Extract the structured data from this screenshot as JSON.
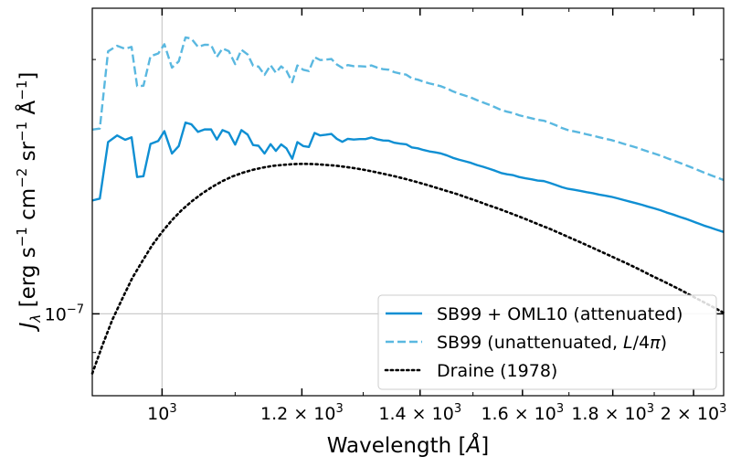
{
  "chart_data": {
    "type": "line",
    "xscale": "log",
    "yscale": "log",
    "xlim": [
      913,
      2080
    ],
    "ylim": [
      8e-08,
      2.3e-07
    ],
    "xlabel_prefix": "Wavelength [",
    "xlabel_unit": "Å",
    "xlabel_suffix": "]",
    "ylabel_parts": [
      "J",
      "λ",
      " [erg s",
      "−1",
      " cm",
      "−2",
      " sr",
      "−1",
      " Å",
      "−1",
      "]"
    ],
    "xticks": [
      {
        "value": 1000,
        "mantissa": "",
        "exp": "3"
      },
      {
        "value": 1200,
        "mantissa": "1.2 × 10",
        "exp": "3"
      },
      {
        "value": 1400,
        "mantissa": "1.4 × 10",
        "exp": "3"
      },
      {
        "value": 1600,
        "mantissa": "1.6 × 10",
        "exp": "3"
      },
      {
        "value": 1800,
        "mantissa": "1.8 × 10",
        "exp": "3"
      },
      {
        "value": 2000,
        "mantissa": "2 × 10",
        "exp": "3"
      }
    ],
    "yticks": [
      {
        "value": 1e-07,
        "base": "10",
        "exp": "−7"
      }
    ],
    "grid_lines": {
      "x": 1000,
      "y": 1e-07,
      "color": "#cccccc"
    },
    "legend_position": "lower-right",
    "series": [
      {
        "name": "SB99 + OML10 (attenuated)",
        "label_parts": [
          "SB99 + OML10 (attenuated)"
        ],
        "color": "#0f8fd3",
        "style": "solid",
        "points": [
          [
            913,
            1.362e-07
          ],
          [
            922,
            1.369e-07
          ],
          [
            932,
            1.597e-07
          ],
          [
            943,
            1.626e-07
          ],
          [
            953,
            1.607e-07
          ],
          [
            961,
            1.618e-07
          ],
          [
            968,
            1.452e-07
          ],
          [
            976,
            1.455e-07
          ],
          [
            985,
            1.589e-07
          ],
          [
            995,
            1.602e-07
          ],
          [
            1003,
            1.645e-07
          ],
          [
            1013,
            1.548e-07
          ],
          [
            1022,
            1.58e-07
          ],
          [
            1031,
            1.684e-07
          ],
          [
            1039,
            1.676e-07
          ],
          [
            1048,
            1.642e-07
          ],
          [
            1057,
            1.653e-07
          ],
          [
            1066,
            1.653e-07
          ],
          [
            1074,
            1.608e-07
          ],
          [
            1082,
            1.65e-07
          ],
          [
            1091,
            1.638e-07
          ],
          [
            1100,
            1.586e-07
          ],
          [
            1109,
            1.65e-07
          ],
          [
            1118,
            1.63e-07
          ],
          [
            1126,
            1.584e-07
          ],
          [
            1134,
            1.581e-07
          ],
          [
            1143,
            1.548e-07
          ],
          [
            1152,
            1.588e-07
          ],
          [
            1160,
            1.559e-07
          ],
          [
            1168,
            1.587e-07
          ],
          [
            1176,
            1.57e-07
          ],
          [
            1185,
            1.526e-07
          ],
          [
            1193,
            1.597e-07
          ],
          [
            1202,
            1.58e-07
          ],
          [
            1211,
            1.576e-07
          ],
          [
            1220,
            1.637e-07
          ],
          [
            1229,
            1.626e-07
          ],
          [
            1238,
            1.629e-07
          ],
          [
            1247,
            1.633e-07
          ],
          [
            1256,
            1.611e-07
          ],
          [
            1265,
            1.598e-07
          ],
          [
            1274,
            1.611e-07
          ],
          [
            1284,
            1.608e-07
          ],
          [
            1294,
            1.61e-07
          ],
          [
            1304,
            1.61e-07
          ],
          [
            1314,
            1.617e-07
          ],
          [
            1324,
            1.609e-07
          ],
          [
            1334,
            1.604e-07
          ],
          [
            1344,
            1.603e-07
          ],
          [
            1354,
            1.594e-07
          ],
          [
            1364,
            1.59e-07
          ],
          [
            1375,
            1.587e-07
          ],
          [
            1385,
            1.574e-07
          ],
          [
            1396,
            1.57e-07
          ],
          [
            1406,
            1.563e-07
          ],
          [
            1417,
            1.557e-07
          ],
          [
            1428,
            1.553e-07
          ],
          [
            1439,
            1.548e-07
          ],
          [
            1450,
            1.54e-07
          ],
          [
            1461,
            1.53e-07
          ],
          [
            1473,
            1.522e-07
          ],
          [
            1484,
            1.516e-07
          ],
          [
            1496,
            1.509e-07
          ],
          [
            1508,
            1.5e-07
          ],
          [
            1520,
            1.493e-07
          ],
          [
            1532,
            1.485e-07
          ],
          [
            1544,
            1.477e-07
          ],
          [
            1556,
            1.468e-07
          ],
          [
            1568,
            1.463e-07
          ],
          [
            1581,
            1.459e-07
          ],
          [
            1593,
            1.452e-07
          ],
          [
            1606,
            1.447e-07
          ],
          [
            1619,
            1.443e-07
          ],
          [
            1632,
            1.438e-07
          ],
          [
            1645,
            1.436e-07
          ],
          [
            1658,
            1.429e-07
          ],
          [
            1671,
            1.421e-07
          ],
          [
            1685,
            1.412e-07
          ],
          [
            1698,
            1.406e-07
          ],
          [
            1712,
            1.402e-07
          ],
          [
            1726,
            1.398e-07
          ],
          [
            1740,
            1.393e-07
          ],
          [
            1754,
            1.389e-07
          ],
          [
            1768,
            1.384e-07
          ],
          [
            1782,
            1.38e-07
          ],
          [
            1796,
            1.376e-07
          ],
          [
            1811,
            1.37e-07
          ],
          [
            1825,
            1.364e-07
          ],
          [
            1840,
            1.358e-07
          ],
          [
            1855,
            1.352e-07
          ],
          [
            1870,
            1.346e-07
          ],
          [
            1885,
            1.339e-07
          ],
          [
            1900,
            1.333e-07
          ],
          [
            1916,
            1.326e-07
          ],
          [
            1931,
            1.318e-07
          ],
          [
            1947,
            1.311e-07
          ],
          [
            1963,
            1.303e-07
          ],
          [
            1979,
            1.296e-07
          ],
          [
            1995,
            1.288e-07
          ],
          [
            2011,
            1.28e-07
          ],
          [
            2027,
            1.272e-07
          ],
          [
            2044,
            1.265e-07
          ],
          [
            2060,
            1.258e-07
          ],
          [
            2080,
            1.25e-07
          ]
        ]
      },
      {
        "name": "SB99 (unattenuated, L/4π)",
        "label_parts": [
          "SB99 (unattenuated, ",
          "L",
          "/4",
          "π",
          ")"
        ],
        "color": "#5ab8e0",
        "style": "dashed",
        "points": [
          [
            913,
            1.652e-07
          ],
          [
            922,
            1.657e-07
          ],
          [
            932,
            2.045e-07
          ],
          [
            943,
            2.076e-07
          ],
          [
            953,
            2.059e-07
          ],
          [
            961,
            2.07e-07
          ],
          [
            968,
            1.86e-07
          ],
          [
            976,
            1.862e-07
          ],
          [
            985,
            2.018e-07
          ],
          [
            995,
            2.033e-07
          ],
          [
            1003,
            2.085e-07
          ],
          [
            1013,
            1.956e-07
          ],
          [
            1022,
            1.99e-07
          ],
          [
            1031,
            2.124e-07
          ],
          [
            1039,
            2.117e-07
          ],
          [
            1048,
            2.07e-07
          ],
          [
            1057,
            2.082e-07
          ],
          [
            1066,
            2.081e-07
          ],
          [
            1074,
            2.014e-07
          ],
          [
            1082,
            2.061e-07
          ],
          [
            1091,
            2.046e-07
          ],
          [
            1100,
            1.975e-07
          ],
          [
            1109,
            2.054e-07
          ],
          [
            1118,
            2.028e-07
          ],
          [
            1126,
            1.967e-07
          ],
          [
            1134,
            1.962e-07
          ],
          [
            1143,
            1.918e-07
          ],
          [
            1152,
            1.969e-07
          ],
          [
            1160,
            1.929e-07
          ],
          [
            1168,
            1.963e-07
          ],
          [
            1176,
            1.94e-07
          ],
          [
            1185,
            1.88e-07
          ],
          [
            1193,
            1.968e-07
          ],
          [
            1202,
            1.945e-07
          ],
          [
            1211,
            1.938e-07
          ],
          [
            1220,
            2.013e-07
          ],
          [
            1229,
            1.997e-07
          ],
          [
            1238,
            1.999e-07
          ],
          [
            1247,
            2.003e-07
          ],
          [
            1256,
            1.973e-07
          ],
          [
            1265,
            1.955e-07
          ],
          [
            1274,
            1.97e-07
          ],
          [
            1284,
            1.964e-07
          ],
          [
            1294,
            1.964e-07
          ],
          [
            1304,
            1.962e-07
          ],
          [
            1314,
            1.968e-07
          ],
          [
            1324,
            1.956e-07
          ],
          [
            1334,
            1.948e-07
          ],
          [
            1344,
            1.945e-07
          ],
          [
            1354,
            1.932e-07
          ],
          [
            1364,
            1.925e-07
          ],
          [
            1375,
            1.919e-07
          ],
          [
            1385,
            1.9e-07
          ],
          [
            1396,
            1.893e-07
          ],
          [
            1406,
            1.883e-07
          ],
          [
            1417,
            1.874e-07
          ],
          [
            1428,
            1.867e-07
          ],
          [
            1439,
            1.859e-07
          ],
          [
            1450,
            1.848e-07
          ],
          [
            1461,
            1.834e-07
          ],
          [
            1473,
            1.822e-07
          ],
          [
            1484,
            1.813e-07
          ],
          [
            1496,
            1.803e-07
          ],
          [
            1508,
            1.79e-07
          ],
          [
            1520,
            1.779e-07
          ],
          [
            1532,
            1.768e-07
          ],
          [
            1544,
            1.756e-07
          ],
          [
            1556,
            1.743e-07
          ],
          [
            1568,
            1.735e-07
          ],
          [
            1581,
            1.728e-07
          ],
          [
            1593,
            1.718e-07
          ],
          [
            1606,
            1.711e-07
          ],
          [
            1619,
            1.704e-07
          ],
          [
            1632,
            1.697e-07
          ],
          [
            1645,
            1.693e-07
          ],
          [
            1658,
            1.683e-07
          ],
          [
            1671,
            1.672e-07
          ],
          [
            1685,
            1.659e-07
          ],
          [
            1698,
            1.65e-07
          ],
          [
            1712,
            1.644e-07
          ],
          [
            1726,
            1.638e-07
          ],
          [
            1740,
            1.631e-07
          ],
          [
            1754,
            1.625e-07
          ],
          [
            1768,
            1.618e-07
          ],
          [
            1782,
            1.612e-07
          ],
          [
            1796,
            1.606e-07
          ],
          [
            1811,
            1.598e-07
          ],
          [
            1825,
            1.59e-07
          ],
          [
            1840,
            1.582e-07
          ],
          [
            1855,
            1.574e-07
          ],
          [
            1870,
            1.565e-07
          ],
          [
            1885,
            1.556e-07
          ],
          [
            1900,
            1.548e-07
          ],
          [
            1916,
            1.539e-07
          ],
          [
            1931,
            1.529e-07
          ],
          [
            1947,
            1.519e-07
          ],
          [
            1963,
            1.51e-07
          ],
          [
            1979,
            1.5e-07
          ],
          [
            1995,
            1.49e-07
          ],
          [
            2011,
            1.48e-07
          ],
          [
            2027,
            1.47e-07
          ],
          [
            2044,
            1.46e-07
          ],
          [
            2060,
            1.451e-07
          ],
          [
            2080,
            1.44e-07
          ]
        ]
      },
      {
        "name": "Draine (1978)",
        "label_parts": [
          "Draine (1978)"
        ],
        "color": "#000000",
        "style": "dotted",
        "points": [
          [
            913,
            8.5e-08
          ],
          [
            925,
            9.17e-08
          ],
          [
            937,
            9.83e-08
          ],
          [
            950,
            1.045e-07
          ],
          [
            962,
            1.103e-07
          ],
          [
            975,
            1.156e-07
          ],
          [
            987,
            1.205e-07
          ],
          [
            1000,
            1.25e-07
          ],
          [
            1013,
            1.291e-07
          ],
          [
            1026,
            1.327e-07
          ],
          [
            1040,
            1.36e-07
          ],
          [
            1054,
            1.389e-07
          ],
          [
            1068,
            1.414e-07
          ],
          [
            1082,
            1.436e-07
          ],
          [
            1096,
            1.454e-07
          ],
          [
            1111,
            1.469e-07
          ],
          [
            1126,
            1.481e-07
          ],
          [
            1141,
            1.49e-07
          ],
          [
            1156,
            1.497e-07
          ],
          [
            1172,
            1.501e-07
          ],
          [
            1187,
            1.504e-07
          ],
          [
            1203,
            1.505e-07
          ],
          [
            1219,
            1.504e-07
          ],
          [
            1236,
            1.501e-07
          ],
          [
            1252,
            1.498e-07
          ],
          [
            1269,
            1.493e-07
          ],
          [
            1286,
            1.487e-07
          ],
          [
            1303,
            1.48e-07
          ],
          [
            1320,
            1.472e-07
          ],
          [
            1338,
            1.463e-07
          ],
          [
            1356,
            1.454e-07
          ],
          [
            1374,
            1.444e-07
          ],
          [
            1393,
            1.433e-07
          ],
          [
            1411,
            1.422e-07
          ],
          [
            1430,
            1.41e-07
          ],
          [
            1449,
            1.398e-07
          ],
          [
            1469,
            1.386e-07
          ],
          [
            1488,
            1.373e-07
          ],
          [
            1508,
            1.36e-07
          ],
          [
            1528,
            1.346e-07
          ],
          [
            1549,
            1.333e-07
          ],
          [
            1570,
            1.319e-07
          ],
          [
            1591,
            1.305e-07
          ],
          [
            1612,
            1.291e-07
          ],
          [
            1634,
            1.276e-07
          ],
          [
            1656,
            1.262e-07
          ],
          [
            1678,
            1.247e-07
          ],
          [
            1700,
            1.232e-07
          ],
          [
            1723,
            1.217e-07
          ],
          [
            1746,
            1.202e-07
          ],
          [
            1769,
            1.187e-07
          ],
          [
            1793,
            1.172e-07
          ],
          [
            1817,
            1.157e-07
          ],
          [
            1842,
            1.142e-07
          ],
          [
            1866,
            1.127e-07
          ],
          [
            1891,
            1.111e-07
          ],
          [
            1917,
            1.096e-07
          ],
          [
            1943,
            1.081e-07
          ],
          [
            1969,
            1.066e-07
          ],
          [
            1995,
            1.05e-07
          ],
          [
            2022,
            1.035e-07
          ],
          [
            2049,
            1.02e-07
          ],
          [
            2080,
            1.003e-07
          ]
        ]
      }
    ]
  }
}
